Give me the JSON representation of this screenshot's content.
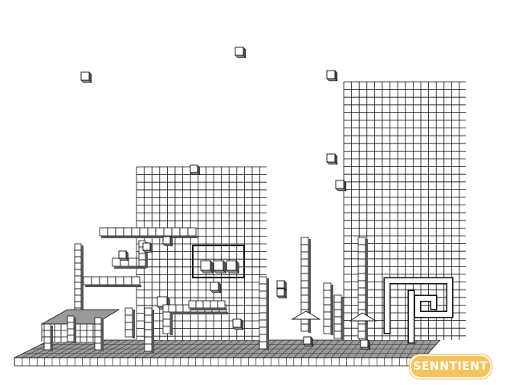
{
  "logo": {
    "text": "SENNTIENT"
  },
  "colors": {
    "background": "#ffffff",
    "line": "#111111",
    "cube_face": "#ffffff",
    "cube_side": "#555555",
    "floor_top": "#9a9a9a",
    "logo_fill": "#f6c25a",
    "logo_text": "#ffffff"
  }
}
